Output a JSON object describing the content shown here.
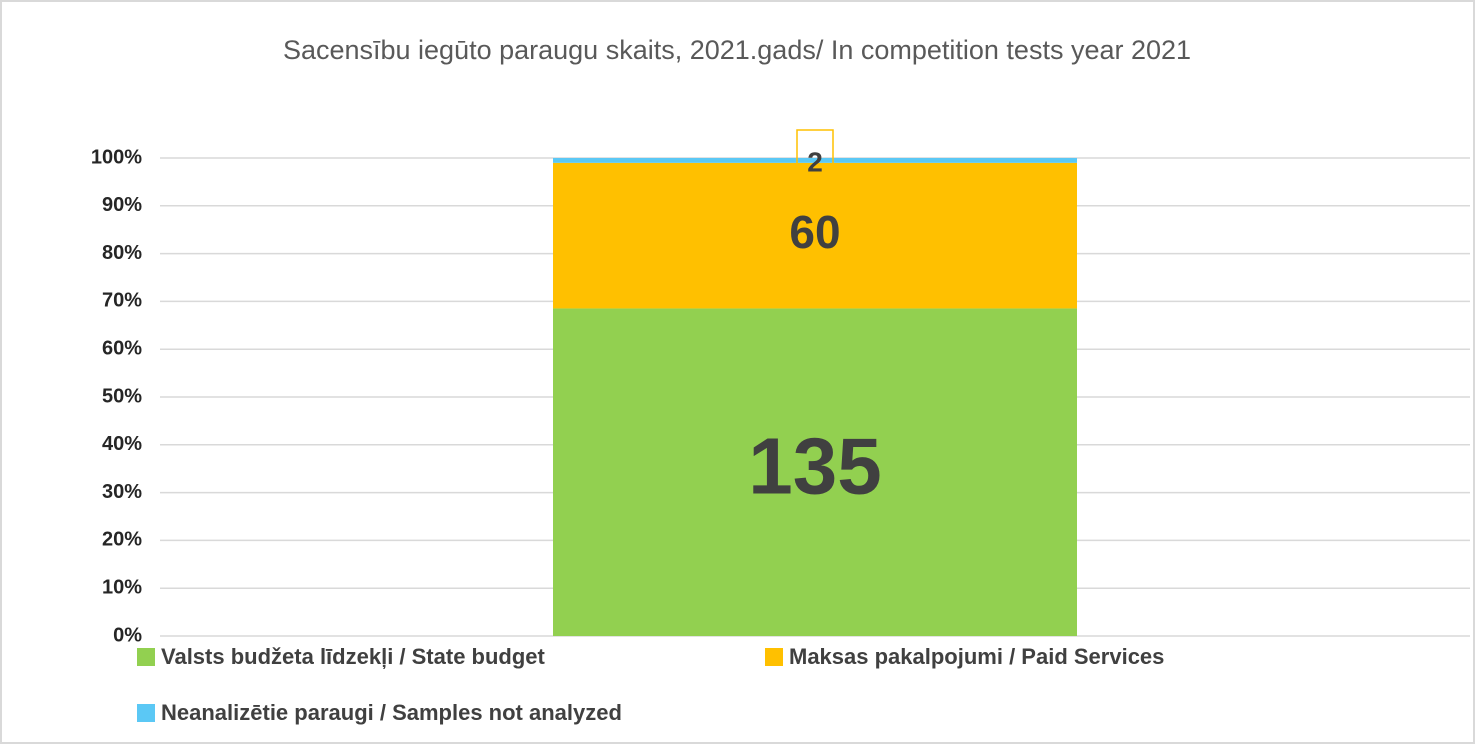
{
  "chart_data": {
    "type": "bar",
    "stacked": "percent",
    "title": "Sacensību iegūto paraugu skaits, 2021.gads/ In competition tests year 2021",
    "categories": [
      null
    ],
    "series": [
      {
        "name": "Valsts budžeta līdzekļi / State budget",
        "color": "#92d050",
        "values": [
          135
        ]
      },
      {
        "name": "Maksas pakalpojumi / Paid Services",
        "color": "#ffc000",
        "values": [
          60
        ]
      },
      {
        "name": "Neanalizētie paraugi / Samples not analyzed",
        "color": "#5bc8f5",
        "values": [
          2
        ]
      }
    ],
    "ylim": [
      0,
      100
    ],
    "yticks": [
      {
        "value": 0,
        "label": "0%"
      },
      {
        "value": 10,
        "label": "10%"
      },
      {
        "value": 20,
        "label": "20%"
      },
      {
        "value": 30,
        "label": "30%"
      },
      {
        "value": 40,
        "label": "40%"
      },
      {
        "value": 50,
        "label": "50%"
      },
      {
        "value": 60,
        "label": "60%"
      },
      {
        "value": 70,
        "label": "70%"
      },
      {
        "value": 80,
        "label": "80%"
      },
      {
        "value": 90,
        "label": "90%"
      },
      {
        "value": 100,
        "label": "100%"
      }
    ],
    "grid": true,
    "legend": "bottom"
  }
}
